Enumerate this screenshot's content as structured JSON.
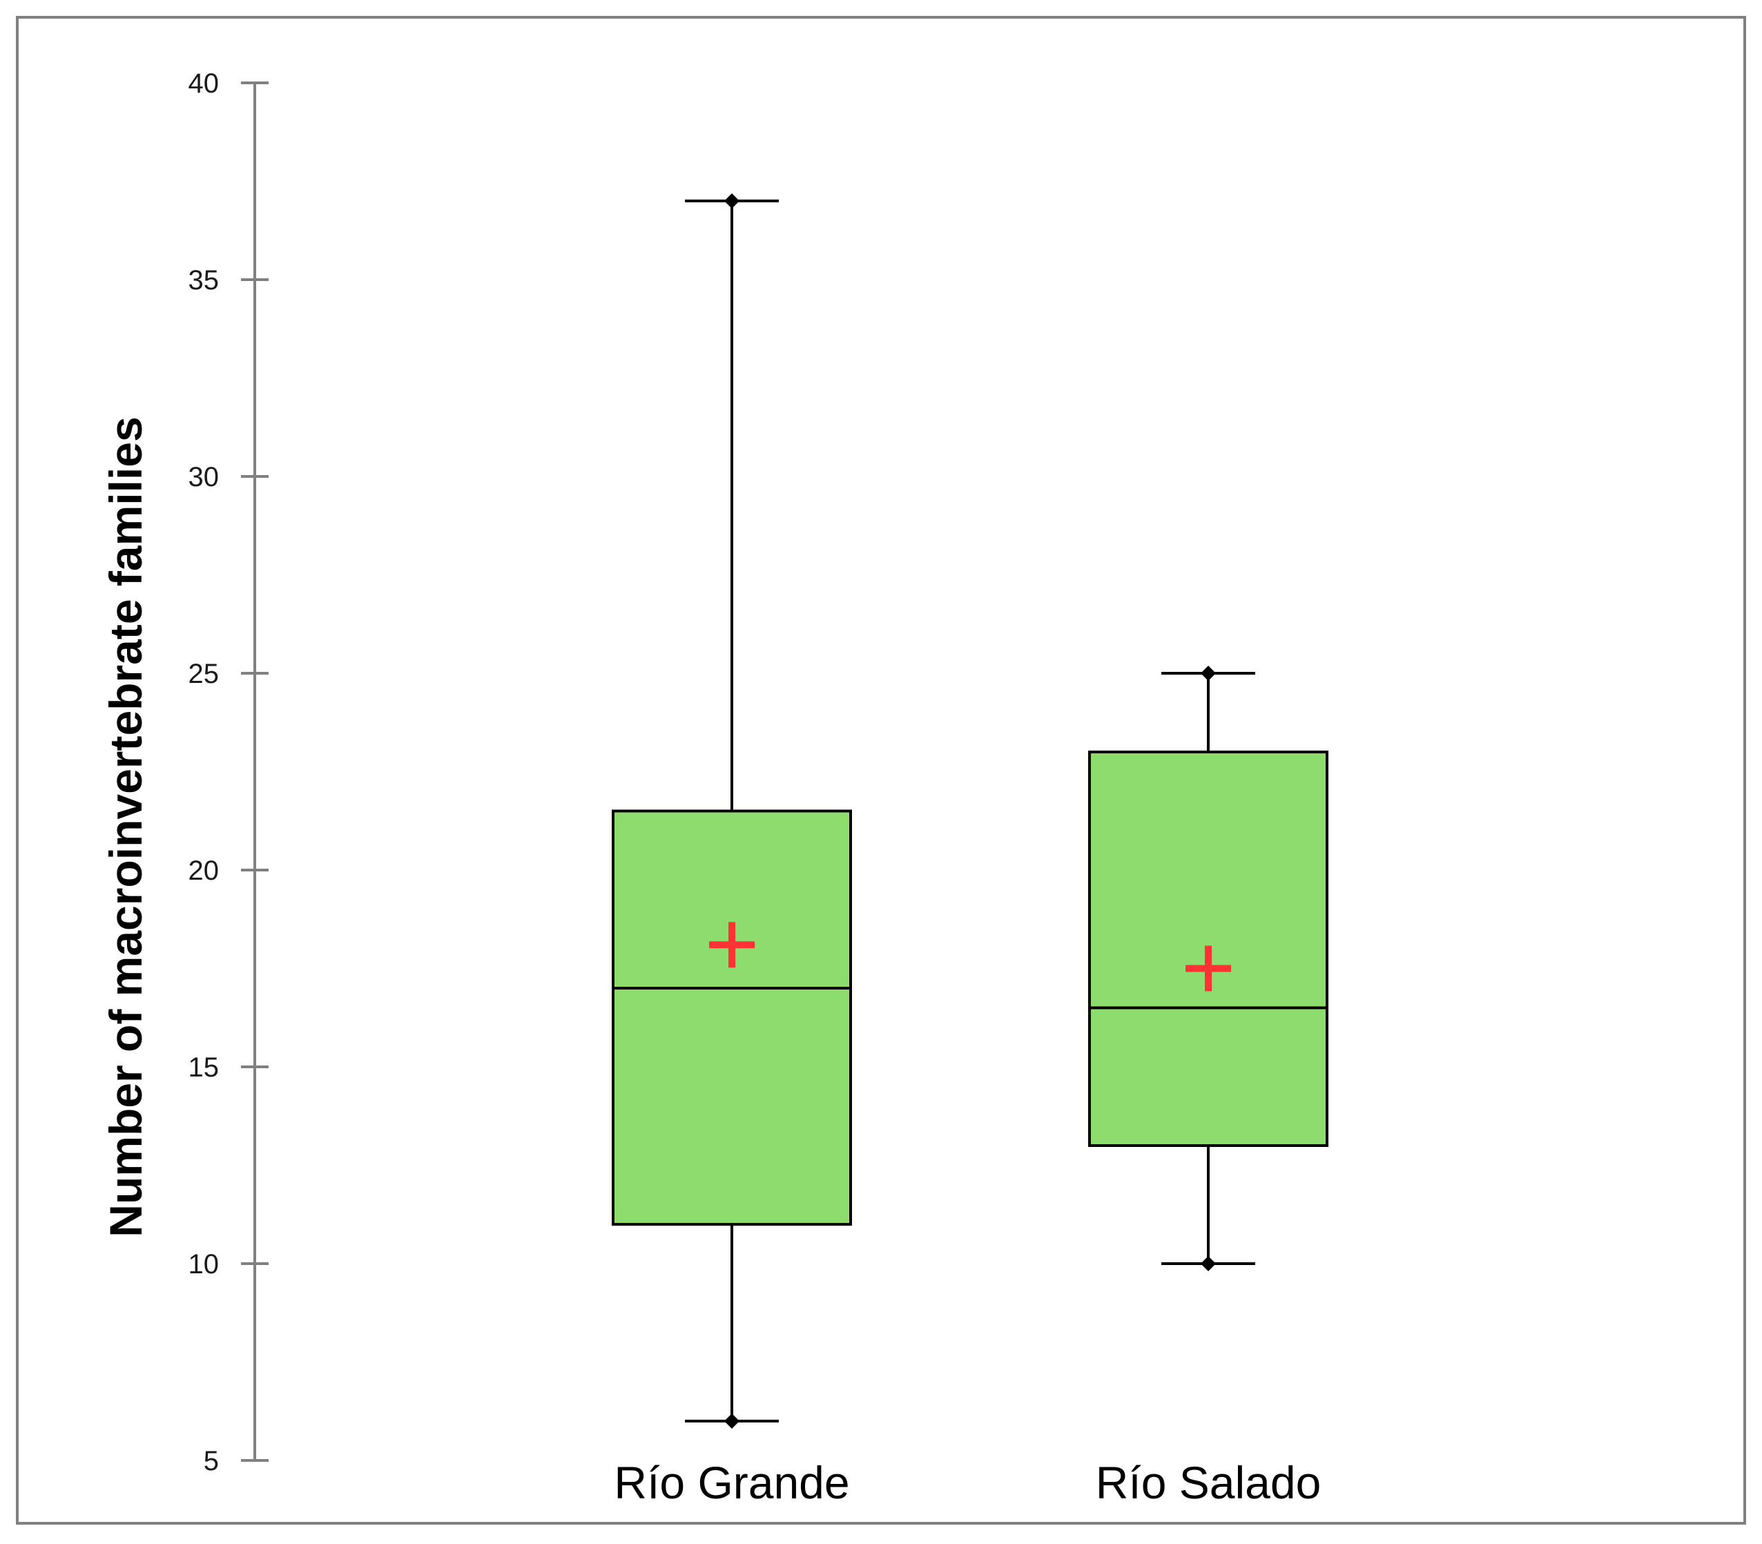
{
  "chart_data": {
    "type": "boxplot",
    "title": "",
    "xlabel": "",
    "ylabel": "Number of macroinvertebrate families",
    "ylim": [
      5,
      40
    ],
    "yticks": [
      5,
      10,
      15,
      20,
      25,
      30,
      35,
      40
    ],
    "grid": false,
    "legend": "none",
    "categories": [
      "Río Grande",
      "Río Salado"
    ],
    "boxes": [
      {
        "category": "Río Grande",
        "min": 6,
        "q1": 11,
        "median": 17,
        "q3": 21.5,
        "max": 37,
        "mean": 18.1
      },
      {
        "category": "Río Salado",
        "min": 10,
        "q1": 13,
        "median": 16.5,
        "q3": 23,
        "max": 25,
        "mean": 17.5
      }
    ],
    "colors": {
      "box_fill": "#8ddc6d",
      "box_stroke": "#000000",
      "mean_marker": "#ff3333",
      "axis": "#808080",
      "frame": "#808080"
    }
  }
}
